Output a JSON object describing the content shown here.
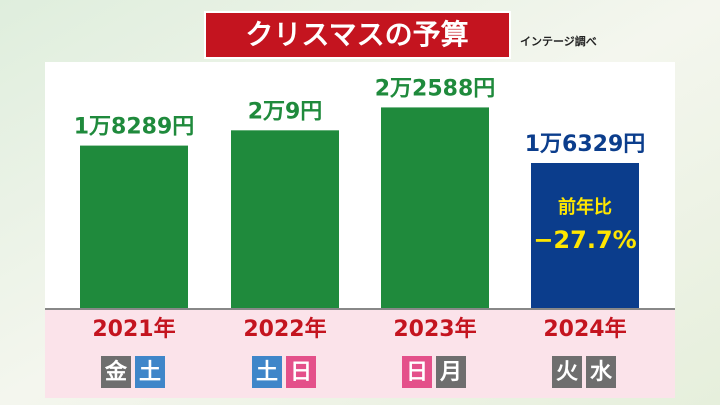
{
  "chart_data": {
    "type": "bar",
    "title": "クリスマスの予算",
    "source": "インテージ調べ",
    "categories": [
      "2021年",
      "2022年",
      "2023年",
      "2024年"
    ],
    "values": [
      18289,
      20009,
      22588,
      16329
    ],
    "value_labels": [
      "1万8289円",
      "2万9円",
      "2万2588円",
      "1万6329円"
    ],
    "colors": [
      "#1f8a3c",
      "#1f8a3c",
      "#1f8a3c",
      "#0b3d8c"
    ],
    "ylim": [
      0,
      25000
    ],
    "annotation": [
      "前年比",
      "−27.7%"
    ],
    "days": [
      [
        {
          "text": "金",
          "color": "#6e6e6e"
        },
        {
          "text": "土",
          "color": "#3f86c9"
        }
      ],
      [
        {
          "text": "土",
          "color": "#3f86c9"
        },
        {
          "text": "日",
          "color": "#e4508a"
        }
      ],
      [
        {
          "text": "日",
          "color": "#e4508a"
        },
        {
          "text": "月",
          "color": "#6e6e6e"
        }
      ],
      [
        {
          "text": "火",
          "color": "#6e6e6e"
        },
        {
          "text": "水",
          "color": "#6e6e6e"
        }
      ]
    ]
  }
}
